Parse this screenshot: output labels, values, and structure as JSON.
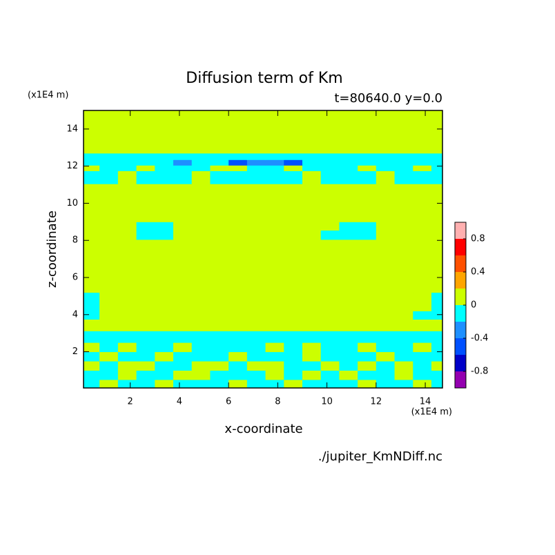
{
  "chart_data": {
    "type": "contour",
    "title": "Diffusion term of Km",
    "subtitle": "t=80640.0 y=0.0",
    "x_label": "x-coordinate",
    "y_label": "z-coordinate",
    "x_unit": "(x1E4 m)",
    "y_unit": "(x1E4 m)",
    "source": "./jupiter_KmNDiff.nc",
    "xlim": [
      0.1,
      14.7
    ],
    "ylim": [
      0.05,
      15
    ],
    "xticks": [
      2,
      4,
      6,
      8,
      10,
      12,
      14
    ],
    "yticks": [
      2,
      4,
      6,
      8,
      10,
      12,
      14
    ],
    "x": [
      0.375,
      1.125,
      1.875,
      2.625,
      3.375,
      4.125,
      4.875,
      5.625,
      6.375,
      7.125,
      7.875,
      8.625,
      9.375,
      10.125,
      10.875,
      11.625,
      12.375,
      13.125,
      13.875,
      14.625
    ],
    "z": [
      0.25,
      0.75,
      1.25,
      1.75,
      2.25,
      2.75,
      3.5,
      4.0,
      4.4,
      6.0,
      7.8,
      8.3,
      8.8,
      9.2,
      10.5,
      11.6,
      11.9,
      12.2,
      12.5,
      12.9,
      13.7
    ],
    "values": [
      [
        -0.1,
        0.1,
        -0.1,
        -0.1,
        0.1,
        -0.1,
        -0.1,
        -0.1,
        0.1,
        -0.1,
        -0.1,
        0.1,
        -0.1,
        -0.1,
        -0.1,
        0.1,
        -0.1,
        -0.1,
        0.1,
        -0.1
      ],
      [
        -0.1,
        -0.1,
        0.1,
        -0.1,
        -0.1,
        0.1,
        0.1,
        -0.1,
        -0.1,
        -0.1,
        0.1,
        -0.1,
        0.1,
        -0.1,
        0.1,
        -0.1,
        -0.1,
        0.1,
        -0.1,
        -0.1
      ],
      [
        0.1,
        -0.1,
        0.1,
        0.1,
        -0.1,
        -0.1,
        0.1,
        0.1,
        -0.1,
        0.1,
        0.1,
        -0.1,
        -0.1,
        0.1,
        -0.1,
        0.1,
        -0.1,
        0.1,
        -0.1,
        0.1
      ],
      [
        -0.1,
        0.1,
        -0.1,
        -0.1,
        0.1,
        -0.1,
        -0.1,
        -0.1,
        0.1,
        -0.1,
        -0.1,
        -0.1,
        0.1,
        -0.1,
        -0.1,
        -0.1,
        0.1,
        -0.1,
        -0.1,
        -0.1
      ],
      [
        0.1,
        -0.1,
        0.1,
        -0.1,
        -0.1,
        0.1,
        -0.1,
        -0.1,
        -0.1,
        -0.1,
        0.1,
        -0.1,
        0.1,
        -0.1,
        -0.1,
        0.1,
        -0.1,
        -0.1,
        0.1,
        -0.1
      ],
      [
        -0.1,
        -0.1,
        -0.1,
        -0.1,
        -0.1,
        -0.1,
        -0.1,
        -0.1,
        -0.1,
        -0.1,
        -0.1,
        -0.1,
        -0.1,
        -0.1,
        -0.1,
        -0.1,
        -0.1,
        -0.1,
        -0.1,
        -0.1
      ],
      [
        0.1,
        0.1,
        0.1,
        0.1,
        0.1,
        0.1,
        0.1,
        0.1,
        0.1,
        0.1,
        0.1,
        0.1,
        0.1,
        0.1,
        0.1,
        0.1,
        0.1,
        0.1,
        0.1,
        0.1
      ],
      [
        -0.1,
        0.1,
        0.1,
        0.1,
        0.1,
        0.1,
        0.1,
        0.1,
        0.1,
        0.1,
        0.1,
        0.1,
        0.1,
        0.1,
        0.1,
        0.1,
        0.1,
        0.1,
        -0.1,
        -0.1
      ],
      [
        -0.1,
        0.1,
        0.1,
        0.1,
        0.1,
        0.1,
        0.1,
        0.1,
        0.1,
        0.1,
        0.1,
        0.1,
        0.1,
        0.1,
        0.1,
        0.1,
        0.1,
        0.1,
        0.1,
        -0.1
      ],
      [
        0.1,
        0.1,
        0.1,
        0.1,
        0.1,
        0.1,
        0.1,
        0.1,
        0.1,
        0.1,
        0.1,
        0.1,
        0.1,
        0.1,
        0.1,
        0.1,
        0.1,
        0.1,
        0.1,
        0.1
      ],
      [
        0.1,
        0.1,
        0.1,
        0.1,
        0.1,
        0.1,
        0.1,
        0.1,
        0.1,
        0.1,
        0.1,
        0.1,
        0.1,
        0.1,
        0.1,
        0.1,
        0.1,
        0.1,
        0.1,
        0.1
      ],
      [
        0.1,
        0.1,
        0.1,
        -0.1,
        -0.1,
        0.1,
        0.1,
        0.1,
        0.1,
        0.1,
        0.1,
        0.1,
        0.1,
        -0.1,
        -0.1,
        -0.1,
        0.1,
        0.1,
        0.1,
        0.1
      ],
      [
        0.1,
        0.1,
        0.1,
        -0.1,
        -0.1,
        0.1,
        0.1,
        0.1,
        0.1,
        0.1,
        0.1,
        0.1,
        0.1,
        0.1,
        -0.1,
        -0.1,
        0.1,
        0.1,
        0.1,
        0.1
      ],
      [
        0.1,
        0.1,
        0.1,
        0.1,
        0.1,
        0.1,
        0.1,
        0.1,
        0.1,
        0.1,
        0.1,
        0.1,
        0.1,
        0.1,
        0.1,
        0.1,
        0.1,
        0.1,
        0.1,
        0.1
      ],
      [
        0.1,
        0.1,
        0.1,
        0.1,
        0.1,
        0.1,
        0.1,
        0.1,
        0.1,
        0.1,
        0.1,
        0.1,
        0.1,
        0.1,
        0.1,
        0.1,
        0.1,
        0.1,
        0.1,
        0.1
      ],
      [
        -0.1,
        -0.1,
        0.1,
        -0.1,
        -0.1,
        -0.1,
        0.1,
        -0.1,
        -0.1,
        -0.1,
        -0.1,
        -0.1,
        0.1,
        -0.1,
        -0.1,
        -0.1,
        0.1,
        -0.1,
        -0.1,
        -0.1
      ],
      [
        0.1,
        -0.1,
        -0.1,
        0.1,
        -0.1,
        -0.1,
        -0.1,
        0.1,
        0.1,
        -0.1,
        -0.1,
        0.1,
        -0.1,
        -0.1,
        -0.1,
        0.1,
        -0.1,
        -0.1,
        0.1,
        -0.1
      ],
      [
        -0.1,
        -0.1,
        -0.1,
        -0.1,
        -0.1,
        -0.3,
        -0.1,
        -0.1,
        -0.5,
        -0.3,
        -0.3,
        -0.5,
        -0.1,
        -0.1,
        -0.1,
        -0.1,
        -0.1,
        -0.1,
        -0.1,
        -0.1
      ],
      [
        -0.1,
        -0.1,
        -0.1,
        -0.1,
        -0.1,
        -0.1,
        -0.1,
        -0.1,
        -0.1,
        -0.1,
        -0.1,
        -0.1,
        -0.1,
        -0.1,
        -0.1,
        -0.1,
        -0.1,
        -0.1,
        -0.1,
        -0.1
      ],
      [
        0.1,
        0.1,
        0.1,
        0.1,
        0.1,
        0.1,
        0.1,
        0.1,
        0.1,
        0.1,
        0.1,
        0.1,
        0.1,
        0.1,
        0.1,
        0.1,
        0.1,
        0.1,
        0.1,
        0.1
      ],
      [
        0.1,
        0.1,
        0.1,
        0.1,
        0.1,
        0.1,
        0.1,
        0.1,
        0.1,
        0.1,
        0.1,
        0.1,
        0.1,
        0.1,
        0.1,
        0.1,
        0.1,
        0.1,
        0.1,
        0.1
      ]
    ],
    "levels": [
      -1,
      -0.8,
      -0.6,
      -0.4,
      -0.2,
      0,
      0.2,
      0.4,
      0.6,
      0.8,
      1
    ],
    "colors": [
      "#9400b0",
      "#0000c8",
      "#0050ff",
      "#1e90ff",
      "#00ffff",
      "#ccff00",
      "#ffa500",
      "#ff5000",
      "#ff0000",
      "#ffb0b0"
    ],
    "colorbar_ticks": [
      -0.8,
      -0.4,
      0,
      0.4,
      0.8
    ]
  }
}
